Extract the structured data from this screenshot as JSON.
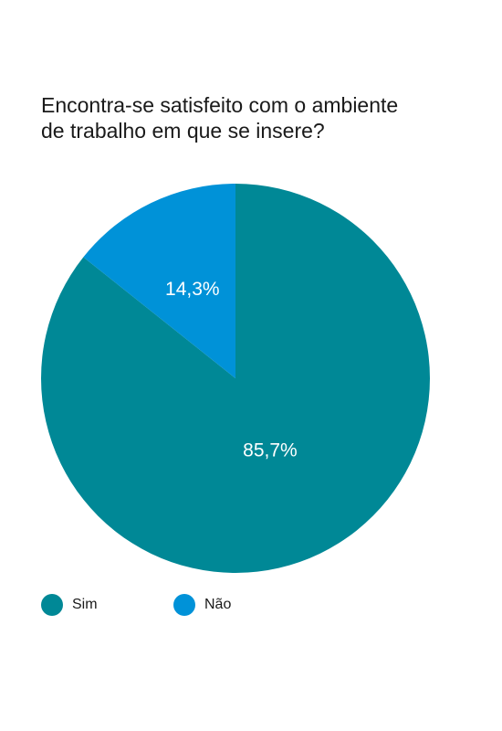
{
  "chart_data": {
    "type": "pie",
    "title_lines": [
      "Encontra-se satisfeito com o ambiente",
      "de trabalho em que se insere?"
    ],
    "slices": [
      {
        "name": "Sim",
        "value": 85.7,
        "label": "85,7%",
        "color": "#008896"
      },
      {
        "name": "Não",
        "value": 14.3,
        "label": "14,3%",
        "color": "#0092d8"
      }
    ],
    "legend": {
      "position": "bottom-left"
    }
  }
}
